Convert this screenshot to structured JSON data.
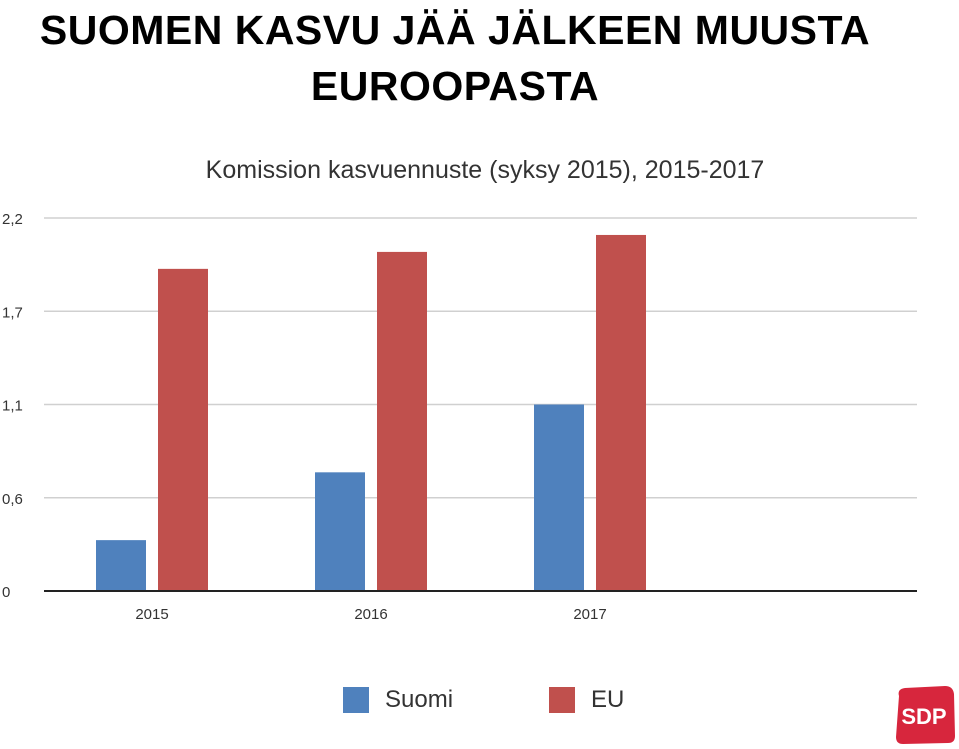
{
  "title": "SUOMEN KASVU JÄÄ JÄLKEEN MUUSTA EUROOPASTA",
  "logo_text": "SDP",
  "colors": {
    "suomi": "#4f81bd",
    "eu": "#c0504d",
    "grid": "#d0d0d0",
    "axis": "#222222",
    "logo": "#d7263d"
  },
  "chart_data": {
    "type": "bar",
    "title": "Komission kasvuennuste (syksy 2015), 2015-2017",
    "categories": [
      "2015",
      "2016",
      "2017"
    ],
    "series": [
      {
        "name": "Suomi",
        "values": [
          0.3,
          0.7,
          1.1
        ]
      },
      {
        "name": "EU",
        "values": [
          1.9,
          2.0,
          2.1
        ]
      }
    ],
    "yticks": [
      "0",
      "0,6",
      "1,1",
      "1,7",
      "2,2"
    ],
    "ylim": [
      0,
      2.2
    ],
    "grid": true,
    "legend": "bottom"
  }
}
